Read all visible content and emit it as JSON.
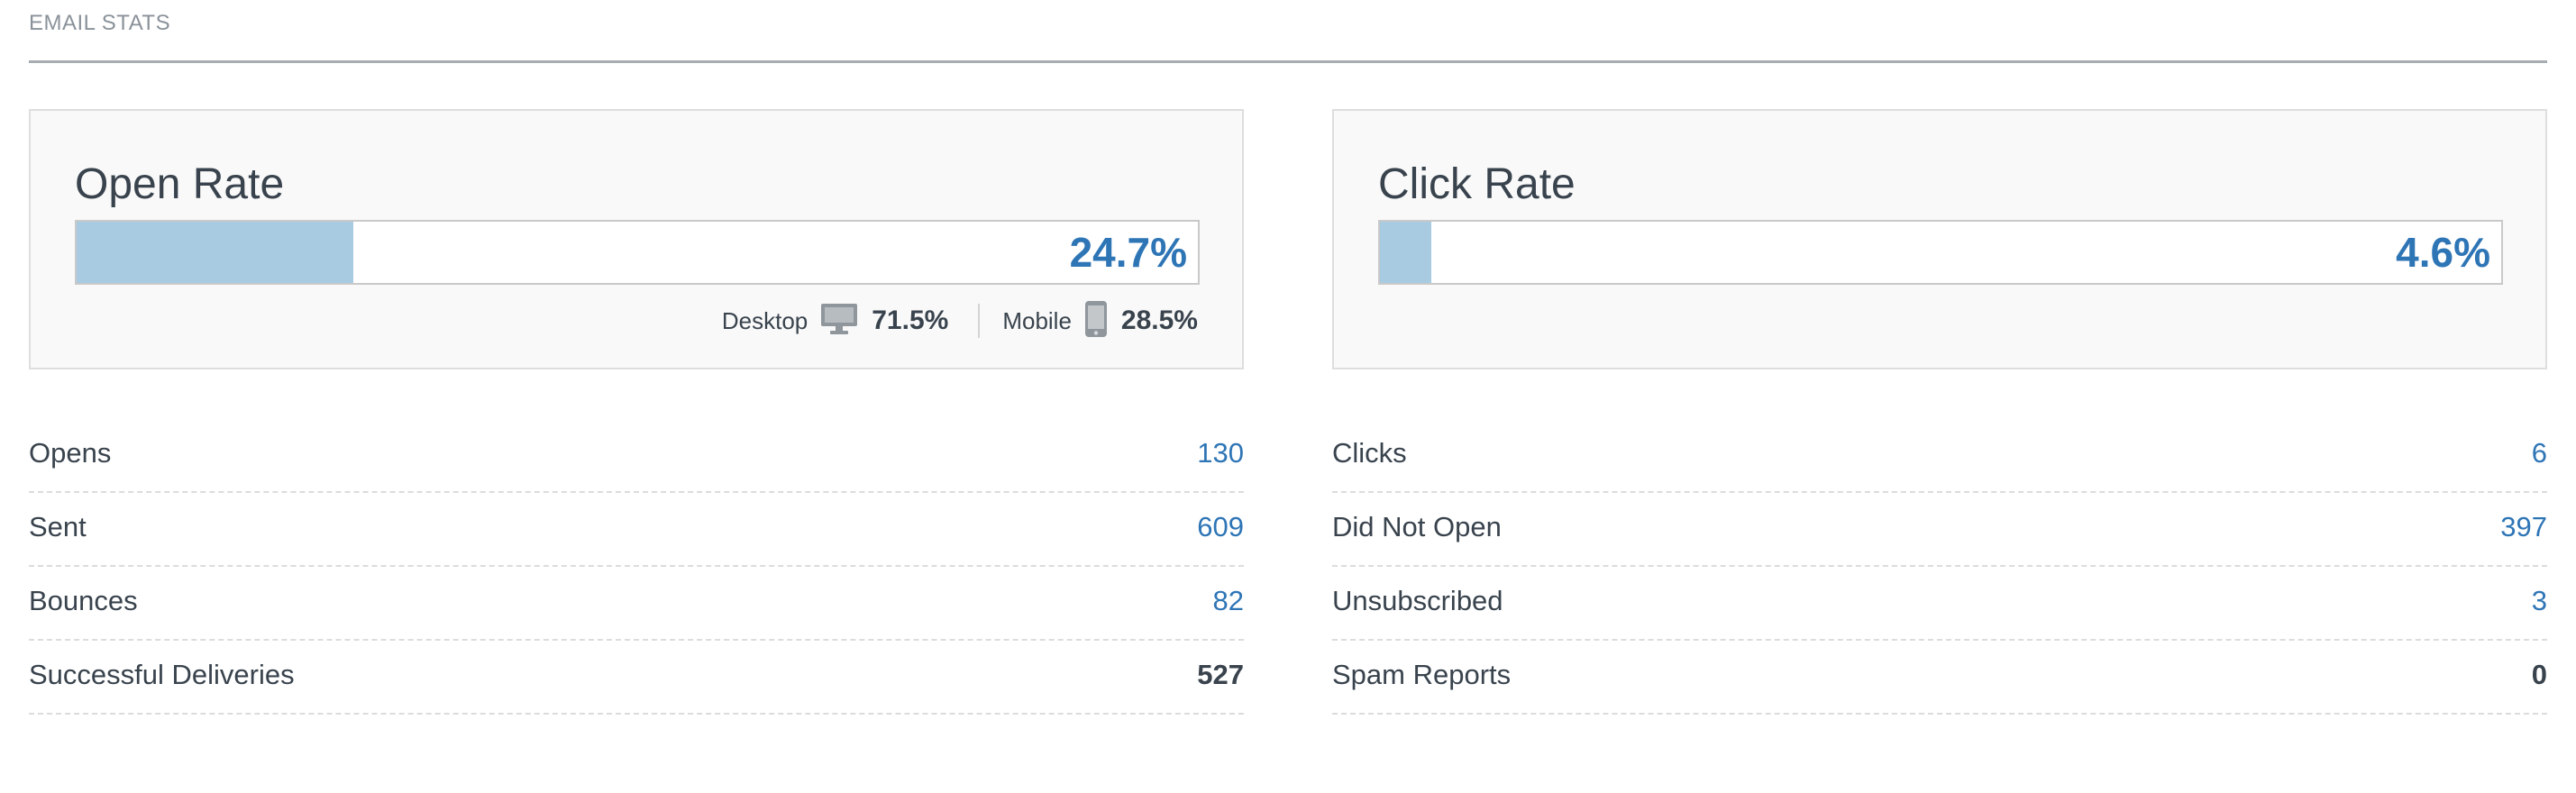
{
  "section": {
    "title": "EMAIL STATS"
  },
  "open_rate": {
    "title": "Open Rate",
    "value": "24.7%",
    "fill_percent": 24.7,
    "desktop_label": "Desktop",
    "desktop_icon": "desktop-monitor-icon",
    "desktop_value": "71.5%",
    "mobile_label": "Mobile",
    "mobile_icon": "mobile-phone-icon",
    "mobile_value": "28.5%"
  },
  "click_rate": {
    "title": "Click Rate",
    "value": "4.6%",
    "fill_percent": 4.6
  },
  "left_stats": [
    {
      "label": "Opens",
      "value": "130",
      "link": true
    },
    {
      "label": "Sent",
      "value": "609",
      "link": true
    },
    {
      "label": "Bounces",
      "value": "82",
      "link": true
    },
    {
      "label": "Successful Deliveries",
      "value": "527",
      "link": false
    }
  ],
  "right_stats": [
    {
      "label": "Clicks",
      "value": "6",
      "link": true
    },
    {
      "label": "Did Not Open",
      "value": "397",
      "link": true
    },
    {
      "label": "Unsubscribed",
      "value": "3",
      "link": true
    },
    {
      "label": "Spam Reports",
      "value": "0",
      "link": false
    }
  ],
  "colors": {
    "accent": "#2e75b6",
    "bar_fill": "#a8cbe2",
    "text": "#39434d",
    "muted": "#8a929a"
  }
}
